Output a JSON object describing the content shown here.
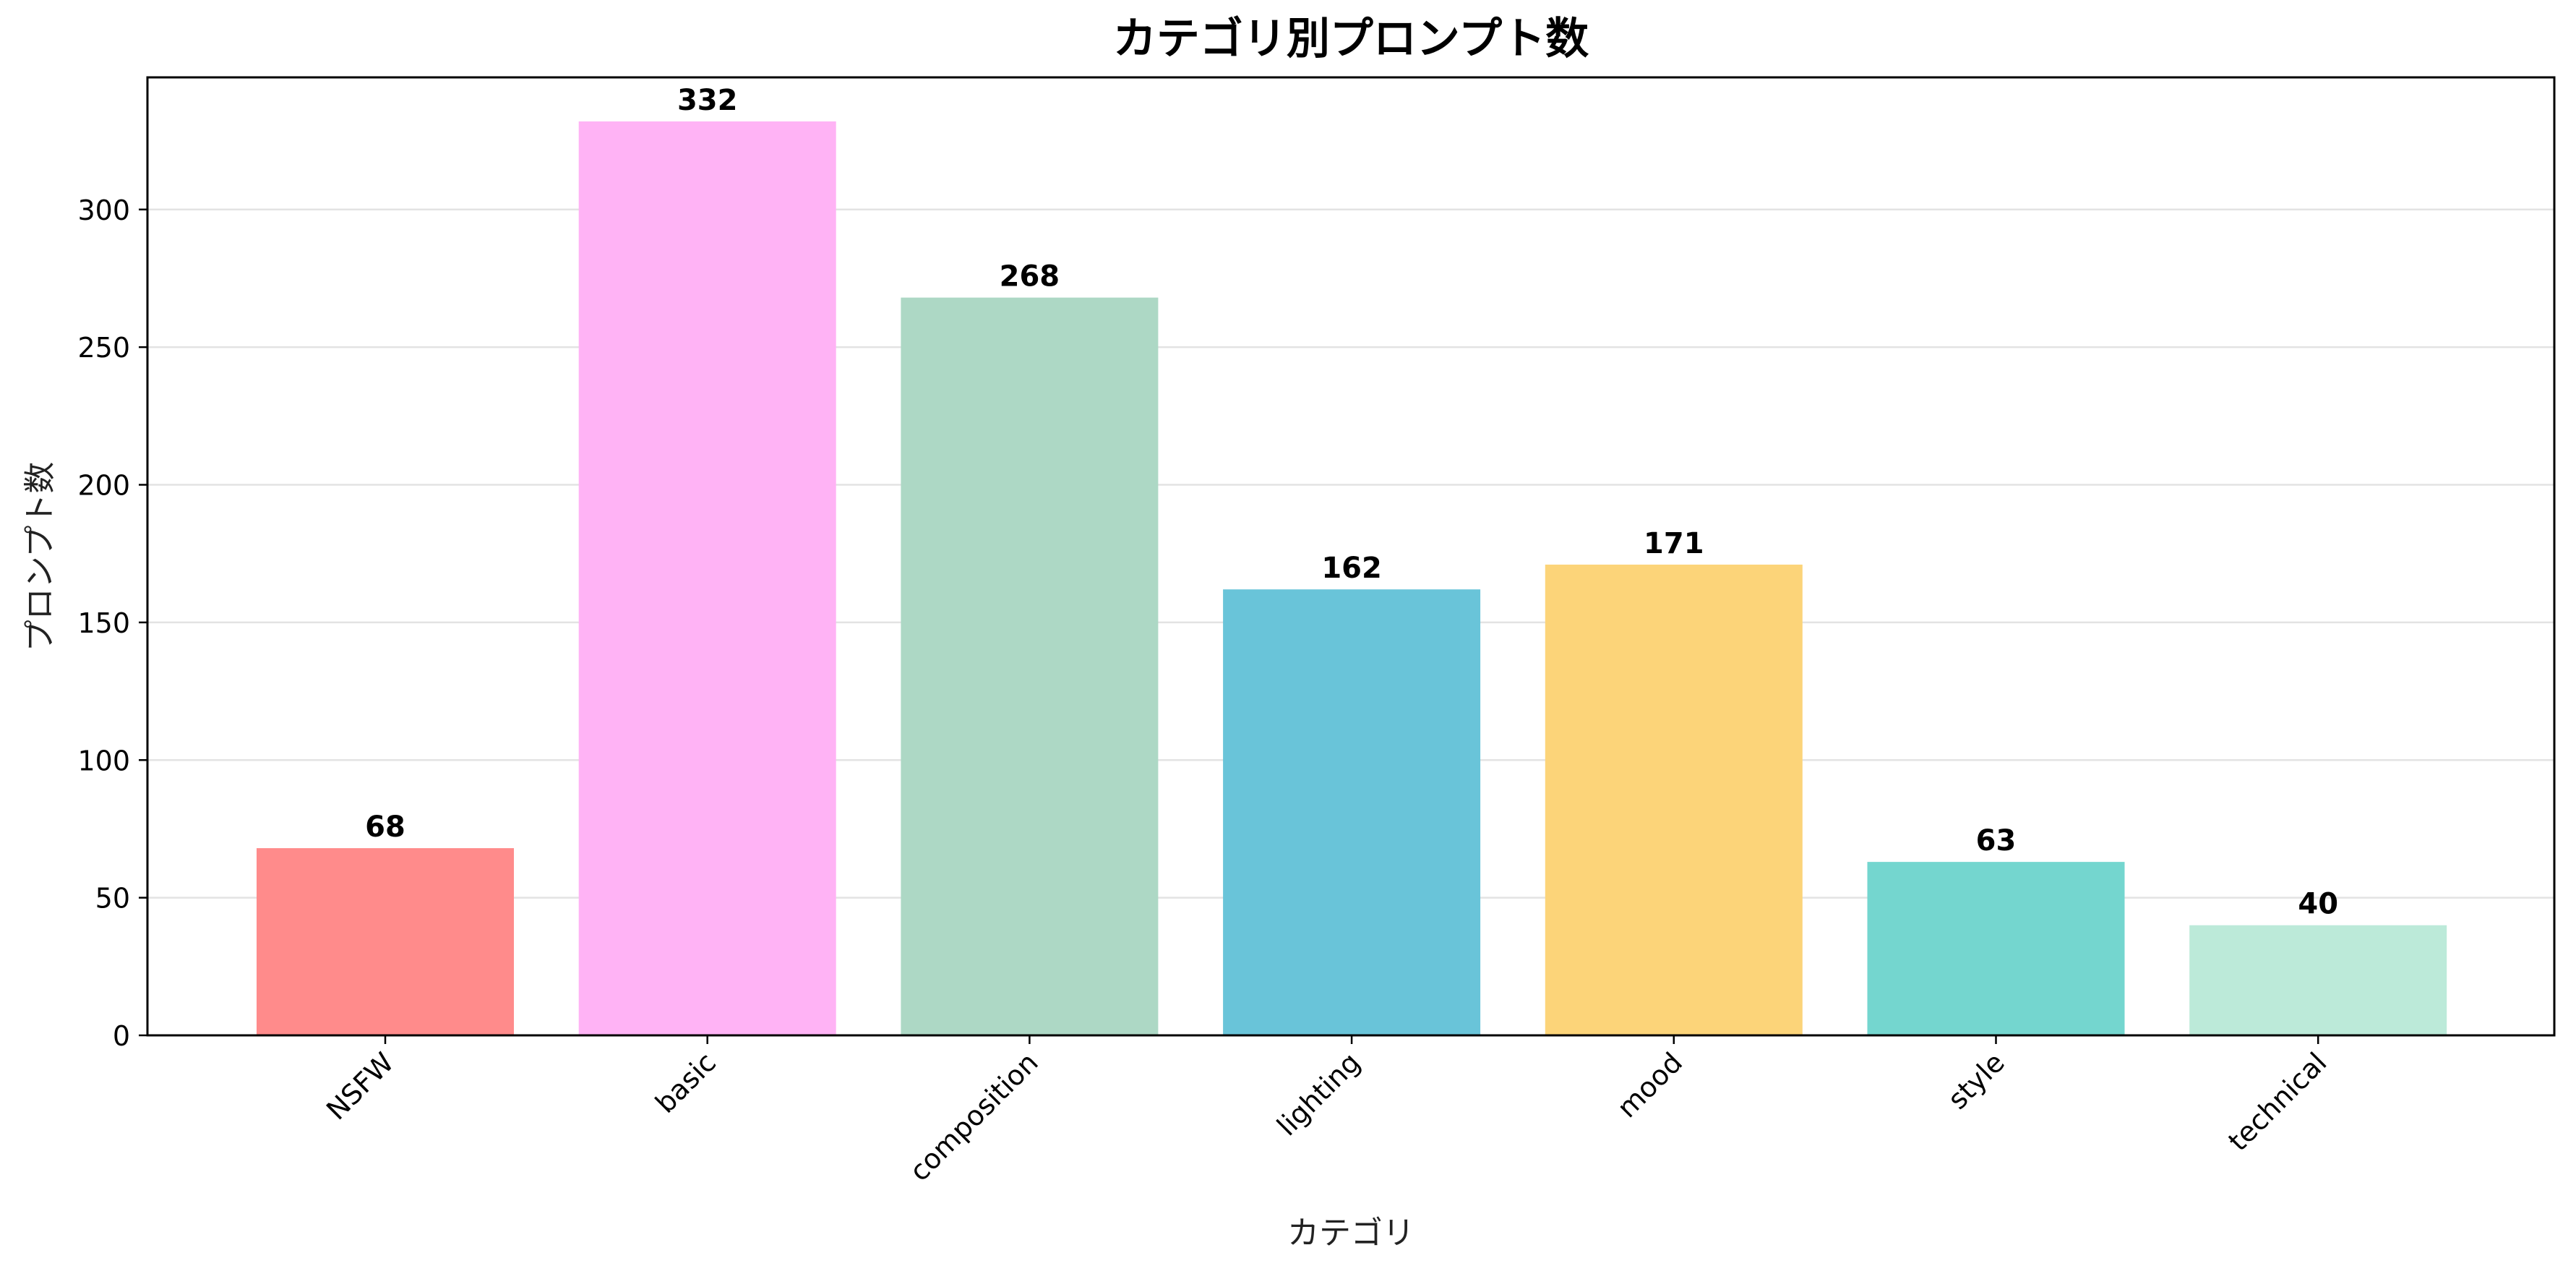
{
  "chart_data": {
    "type": "bar",
    "title": "カテゴリ別プロンプト数",
    "xlabel": "カテゴリ",
    "ylabel": "プロンプト数",
    "categories": [
      "NSFW",
      "basic",
      "composition",
      "lighting",
      "mood",
      "style",
      "technical"
    ],
    "values": [
      68,
      332,
      268,
      162,
      171,
      63,
      40
    ],
    "colors": [
      "#ff8b8b",
      "#ffb3f5",
      "#add8c5",
      "#69c4d9",
      "#fcd479",
      "#74d6cf",
      "#bcead9"
    ],
    "yticks": [
      0,
      50,
      100,
      150,
      200,
      250,
      300
    ],
    "ylim": [
      0,
      348
    ],
    "grid": "y",
    "legend": "none"
  }
}
